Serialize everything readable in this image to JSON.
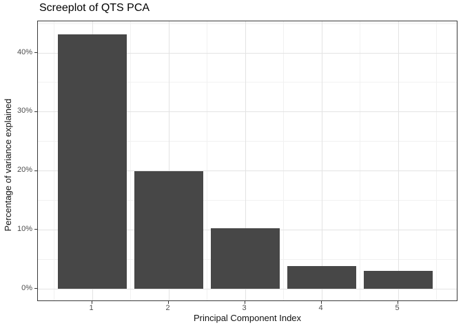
{
  "chart_data": {
    "type": "bar",
    "title": "Screeplot of QTS PCA",
    "xlabel": "Principal Component Index",
    "ylabel": "Percentage of variance explained",
    "categories": [
      "1",
      "2",
      "3",
      "4",
      "5"
    ],
    "values": [
      43.2,
      20.0,
      10.3,
      3.9,
      3.0
    ],
    "value_unit": "%",
    "y_ticks": [
      {
        "v": 0,
        "label": "0%"
      },
      {
        "v": 10,
        "label": "10%"
      },
      {
        "v": 20,
        "label": "20%"
      },
      {
        "v": 30,
        "label": "30%"
      },
      {
        "v": 40,
        "label": "40%"
      }
    ],
    "y_minor": [
      5,
      15,
      25,
      35,
      45
    ],
    "ylim": [
      -2.2,
      45.4
    ],
    "grid": "major+minor",
    "legend": "none",
    "theme": "bw",
    "colors": {
      "bar": "#474747",
      "panel_border": "#383838",
      "grid_major": "#e3e3e3",
      "grid_minor": "#f1f1f1",
      "tick": "#333333",
      "axis_text": "#4d4d4d",
      "title_text": "#000000",
      "background": "#ffffff"
    }
  }
}
